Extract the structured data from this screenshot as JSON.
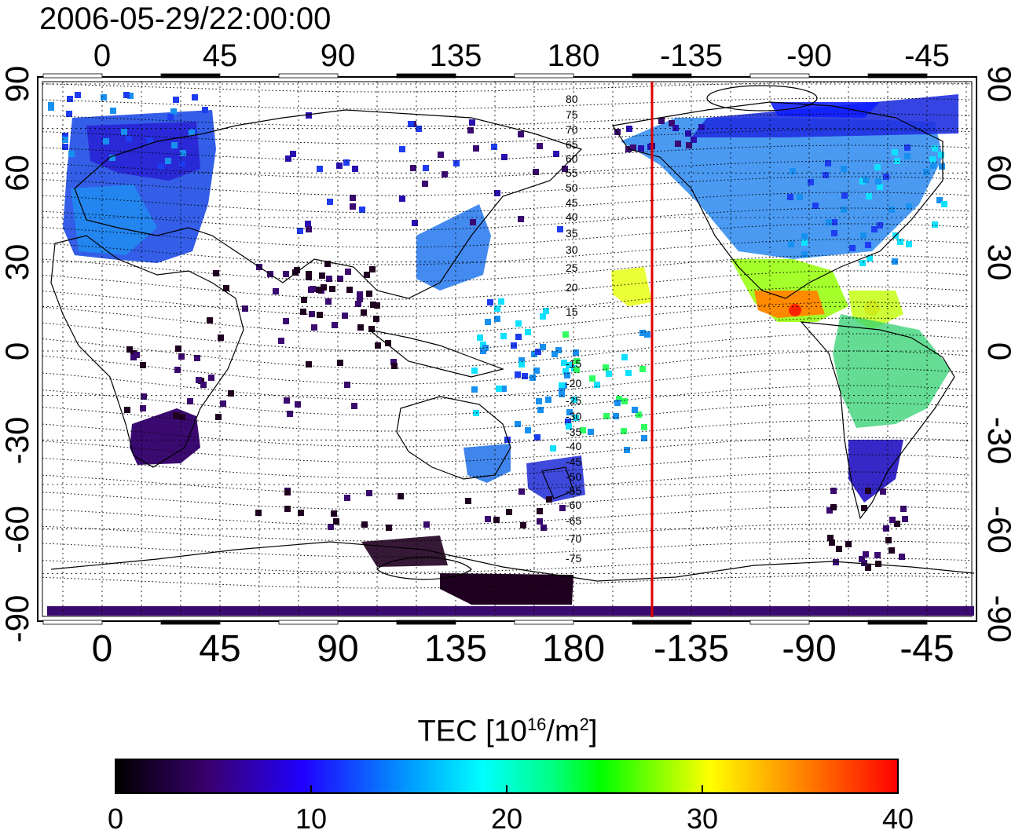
{
  "timestamp": "2006-05-29/22:00:00",
  "map": {
    "x_ticks": [
      "0",
      "45",
      "90",
      "135",
      "180",
      "-135",
      "-90",
      "-45"
    ],
    "y_ticks": [
      "90",
      "60",
      "30",
      "0",
      "-30",
      "-60",
      "-90"
    ],
    "contour_labels": [
      "80",
      "75",
      "70",
      "65",
      "60",
      "55",
      "50",
      "45",
      "40",
      "35",
      "30",
      "25",
      "20",
      "15",
      "-15",
      "-20",
      "-25",
      "-30",
      "-35",
      "-40",
      "-45",
      "-50",
      "-55",
      "-60",
      "-65",
      "-70",
      "-75"
    ],
    "meridian_marker": {
      "longitude": -150,
      "color": "#dd0000"
    }
  },
  "colorbar": {
    "title_prefix": "TEC  [10",
    "title_exp1": "16",
    "title_mid": "/m",
    "title_exp2": "2",
    "title_suffix": "]",
    "ticks": [
      "0",
      "10",
      "20",
      "30",
      "40"
    ],
    "range": [
      0,
      40
    ],
    "colormap": [
      "#000000",
      "#3a0070",
      "#2000ff",
      "#00ffff",
      "#00ff00",
      "#ffff00",
      "#ff8000",
      "#ff0000"
    ]
  }
}
